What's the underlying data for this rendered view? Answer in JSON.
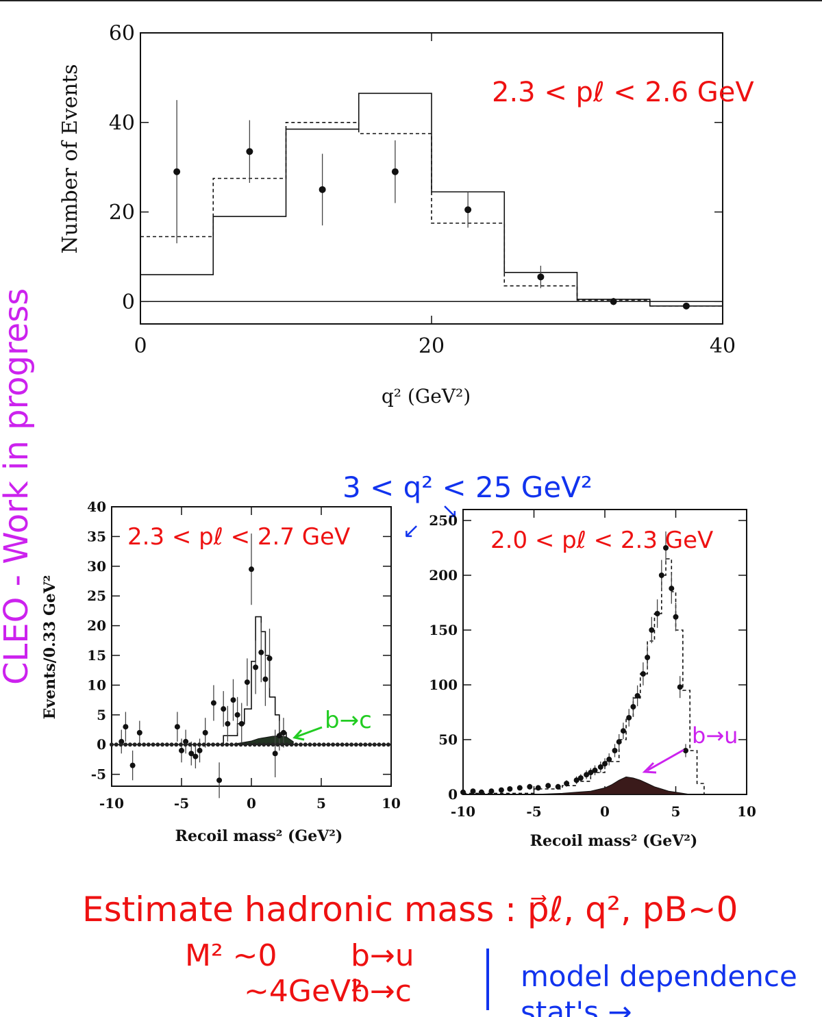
{
  "side_note": "CLEO - Work in progress",
  "annotations": {
    "q2_range": "3 < q² < 25 GeV²",
    "footer_line1": "Estimate hadronic mass : p⃗ℓ, q², pB~0",
    "footer_m2": "M² ~0",
    "footer_bu": "b→u",
    "footer_4gev": "~4GeV²",
    "footer_bc": "b→c",
    "footer_model": "model dependence",
    "footer_stats": "stat's → ..."
  },
  "colors": {
    "red_ink": "#ee1111",
    "blue_ink": "#1133ee",
    "magenta_ink": "#cc22ee",
    "green_ink": "#22cc22",
    "axis": "#111111"
  },
  "chart_data": [
    {
      "type": "histogram",
      "title": "",
      "annotation": "2.3 < pℓ < 2.6 GeV",
      "xlabel": "q² (GeV²)",
      "ylabel": "Number of Events",
      "xlim": [
        0,
        40
      ],
      "ylim": [
        -5,
        60
      ],
      "xticks": [
        "0",
        "20",
        "40"
      ],
      "yticks": [
        "0",
        "20",
        "40",
        "60"
      ],
      "bin_edges": [
        0,
        5,
        10,
        15,
        20,
        25,
        30,
        35,
        40
      ],
      "series": [
        {
          "style": "points-with-errors",
          "x": [
            2.5,
            7.5,
            12.5,
            17.5,
            22.5,
            27.5,
            32.5,
            37.5
          ],
          "y": [
            29,
            33.5,
            25,
            29,
            20.5,
            5.5,
            0,
            -1
          ],
          "err": [
            16,
            7,
            8,
            7,
            4,
            2.5,
            0.8,
            0.5
          ]
        },
        {
          "style": "solid-histogram",
          "values": [
            6,
            19,
            38.5,
            46.5,
            24.5,
            6.5,
            0.5,
            -1
          ]
        },
        {
          "style": "dashed-histogram",
          "values": [
            14.5,
            27.5,
            40,
            37.5,
            17.5,
            3.5,
            0.3,
            -1
          ]
        }
      ]
    },
    {
      "type": "histogram",
      "title": "",
      "annotation": "2.3 < pℓ < 2.7 GeV",
      "side_label": "b→c",
      "xlabel": "Recoil mass² (GeV²)",
      "ylabel": "Events/0.33 GeV²",
      "xlim": [
        -10,
        10
      ],
      "ylim": [
        -7,
        40
      ],
      "xticks": [
        "-10",
        "-5",
        "0",
        "5",
        "10"
      ],
      "yticks": [
        "-5",
        "0",
        "5",
        "10",
        "15",
        "20",
        "25",
        "30",
        "35",
        "40"
      ],
      "series": [
        {
          "style": "points-with-errors",
          "x": [
            -9.3,
            -9.0,
            -8.5,
            -8.0,
            -5.3,
            -5.0,
            -4.7,
            -4.3,
            -4.0,
            -3.7,
            -3.3,
            -2.7,
            -2.3,
            -2.0,
            -1.7,
            -1.3,
            -1.0,
            -0.7,
            -0.3,
            0.0,
            0.3,
            0.7,
            1.0,
            1.3,
            1.7,
            2.0,
            2.3
          ],
          "y": [
            0.5,
            3.0,
            -3.5,
            2.0,
            3.0,
            -1.0,
            0.5,
            -1.5,
            -2.0,
            -1.0,
            2.0,
            7.0,
            -6.0,
            6.0,
            3.5,
            7.5,
            5.0,
            3.5,
            10.5,
            29.5,
            13.0,
            15.5,
            11.0,
            14.5,
            -1.5,
            1.5,
            2.0
          ],
          "err": [
            2,
            2.5,
            2.5,
            2,
            2.5,
            2,
            2,
            2,
            2,
            2,
            2.5,
            3,
            3,
            3,
            3,
            3.5,
            3,
            3.5,
            4,
            6,
            4.5,
            5,
            4.5,
            5,
            4,
            2.5,
            2.5
          ]
        },
        {
          "style": "solid-histogram",
          "x": [
            -3.0,
            -2.0,
            -1.0,
            -0.5,
            0.0,
            0.3,
            0.7,
            1.0,
            1.3,
            1.7,
            2.0,
            2.5
          ],
          "y": [
            0,
            1.5,
            3.5,
            6.0,
            14.0,
            21.5,
            19.0,
            15.0,
            8.0,
            5.0,
            2.0,
            0
          ]
        },
        {
          "style": "b-to-c-background",
          "x": [
            -1.0,
            0.0,
            0.5,
            1.0,
            1.5,
            2.0,
            2.5,
            3.0
          ],
          "y": [
            0.2,
            0.6,
            1.0,
            1.2,
            1.4,
            1.5,
            1.3,
            0.5
          ]
        }
      ]
    },
    {
      "type": "histogram",
      "title": "",
      "annotation": "2.0 < pℓ < 2.3 GeV",
      "side_label": "b→u",
      "xlabel": "Recoil mass² (GeV²)",
      "ylabel": "",
      "xlim": [
        -10,
        10
      ],
      "ylim": [
        0,
        260
      ],
      "xticks": [
        "-10",
        "-5",
        "0",
        "5",
        "10"
      ],
      "yticks": [
        "0",
        "50",
        "100",
        "150",
        "200",
        "250"
      ],
      "series": [
        {
          "style": "points-with-errors",
          "x": [
            -10.0,
            -9.3,
            -8.7,
            -8.0,
            -7.3,
            -6.7,
            -6.0,
            -5.3,
            -4.7,
            -4.0,
            -3.3,
            -2.7,
            -2.0,
            -1.7,
            -1.3,
            -1.0,
            -0.7,
            -0.3,
            0.0,
            0.3,
            0.7,
            1.0,
            1.3,
            1.7,
            2.0,
            2.3,
            2.7,
            3.0,
            3.3,
            3.7,
            4.0,
            4.3,
            4.7,
            5.0,
            5.3,
            5.7
          ],
          "y": [
            2,
            3,
            2,
            3,
            4,
            5,
            6,
            7,
            6,
            8,
            7,
            10,
            13,
            15,
            18,
            20,
            22,
            25,
            28,
            32,
            40,
            48,
            58,
            70,
            80,
            90,
            110,
            125,
            150,
            165,
            200,
            225,
            188,
            162,
            98,
            40
          ],
          "err": [
            1,
            1.5,
            1.5,
            1.5,
            2,
            2,
            2,
            2.5,
            2.5,
            2.5,
            2.5,
            3,
            3.5,
            3.5,
            4,
            4,
            4.5,
            5,
            5,
            5.5,
            6,
            7,
            7.5,
            8,
            9,
            9.5,
            10.5,
            11,
            12,
            13,
            14,
            15,
            14,
            13,
            10,
            6
          ]
        },
        {
          "style": "dashed-histogram",
          "x": [
            -10,
            -5,
            -3,
            -2,
            -1,
            0,
            1,
            1.5,
            2,
            2.5,
            3,
            3.5,
            4,
            4.3,
            4.7,
            5.0,
            5.5,
            6.0,
            6.5,
            7.0
          ],
          "y": [
            1,
            5,
            8,
            12,
            20,
            30,
            50,
            70,
            88,
            110,
            140,
            165,
            200,
            215,
            185,
            150,
            95,
            40,
            10,
            0
          ]
        },
        {
          "style": "b-to-u-filled",
          "x": [
            -5,
            -3,
            -2,
            -1,
            0,
            0.5,
            1.0,
            1.5,
            2.0,
            2.5,
            3.0,
            3.5,
            4.0,
            4.5,
            5.0,
            5.5,
            6.0
          ],
          "y": [
            0,
            1,
            2,
            3,
            6,
            9,
            13,
            16,
            15,
            13,
            10,
            7,
            5,
            3,
            2,
            1,
            0
          ]
        }
      ]
    }
  ]
}
